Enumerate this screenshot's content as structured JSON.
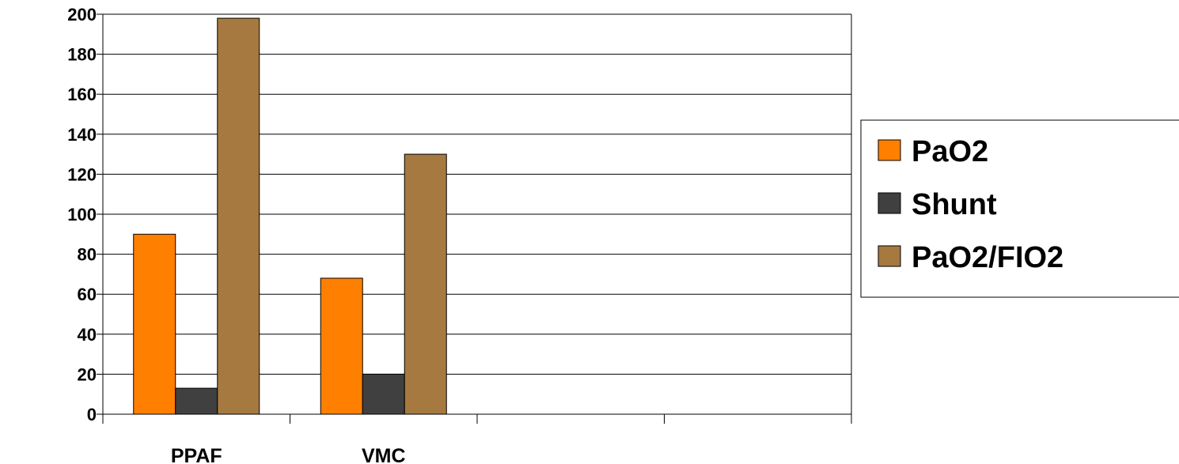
{
  "chart_data": {
    "type": "bar",
    "categories": [
      "PPAF",
      "VMC",
      "",
      ""
    ],
    "series": [
      {
        "name": "PaO2",
        "values": [
          90,
          68,
          null,
          null
        ],
        "color": "#ff7f00"
      },
      {
        "name": "Shunt",
        "values": [
          13,
          20,
          null,
          null
        ],
        "color": "#404040"
      },
      {
        "name": "PaO2/FIO2",
        "values": [
          198,
          130,
          null,
          null
        ],
        "color": "#a67940"
      }
    ],
    "ylim": [
      0,
      200
    ],
    "yticks": [
      0,
      20,
      40,
      60,
      80,
      100,
      120,
      140,
      160,
      180,
      200
    ],
    "grid": true,
    "legend": "right"
  }
}
